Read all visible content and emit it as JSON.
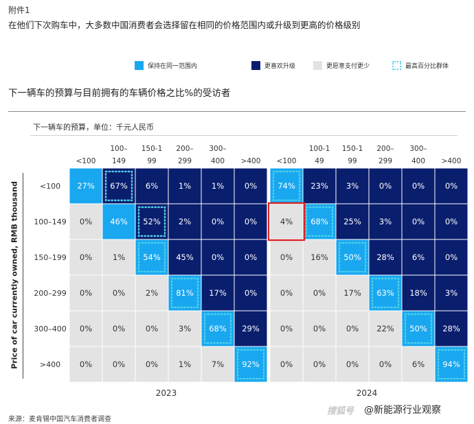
{
  "header": {
    "appendix": "附件1",
    "headline": "在他们下次购车中，大多数中国消费者会选择留在相同的价格范围内或升级到更高的价格级别"
  },
  "legend": [
    {
      "key": "same",
      "label": "保持在同一范围内",
      "color": "#19a7f0"
    },
    {
      "key": "up",
      "label": "更喜欢升级",
      "color": "#0a1e6e"
    },
    {
      "key": "down",
      "label": "更愿意支付更少",
      "color": "#e3e3e3"
    },
    {
      "key": "max",
      "label": "最高百分比群体",
      "color": "#4fd0ea"
    }
  ],
  "chart_title": "下一辆车的预算与目前拥有的车辆价格之比%的受访者",
  "source": "来源：麦肯锡中国汽车消费者调查",
  "watermark": {
    "mark": "搜狐号",
    "text": "@新能源行业观察"
  },
  "chart_data": {
    "type": "heatmap",
    "subtitle": "下一辆车的预算，单位：千元人民币",
    "ylabel": "Price of car currently owned, RMB thousand",
    "row_labels": [
      "<100",
      "100–149",
      "150–199",
      "200–299",
      "300–400",
      ">400"
    ],
    "panels": [
      {
        "year": "2023",
        "col_labels": [
          [
            "<100"
          ],
          [
            "100–",
            "149"
          ],
          [
            "150-1",
            "99"
          ],
          [
            "200–",
            "299"
          ],
          [
            "300–",
            "400"
          ],
          [
            ">400"
          ]
        ],
        "values": [
          [
            27,
            67,
            6,
            1,
            1,
            0
          ],
          [
            0,
            46,
            52,
            2,
            0,
            0
          ],
          [
            0,
            1,
            54,
            45,
            0,
            0
          ],
          [
            0,
            0,
            2,
            81,
            17,
            0
          ],
          [
            0,
            0,
            0,
            3,
            68,
            29
          ],
          [
            0,
            0,
            0,
            1,
            7,
            92
          ]
        ],
        "highest": [
          [
            0,
            1
          ],
          [
            1,
            2
          ],
          [
            2,
            2
          ],
          [
            3,
            3
          ],
          [
            4,
            4
          ],
          [
            5,
            5
          ]
        ]
      },
      {
        "year": "2024",
        "col_labels": [
          [
            "<100"
          ],
          [
            "100-1",
            "49"
          ],
          [
            "150-1",
            "99"
          ],
          [
            "200–",
            "299"
          ],
          [
            "300–",
            "400"
          ],
          [
            ">400"
          ]
        ],
        "values": [
          [
            74,
            23,
            3,
            0,
            0,
            0
          ],
          [
            4,
            68,
            25,
            3,
            0,
            0
          ],
          [
            0,
            16,
            50,
            28,
            6,
            0
          ],
          [
            0,
            0,
            17,
            63,
            18,
            3
          ],
          [
            0,
            0,
            0,
            22,
            50,
            28
          ],
          [
            0,
            0,
            0,
            0,
            6,
            94
          ]
        ],
        "highest": [
          [
            0,
            0
          ],
          [
            1,
            1
          ],
          [
            2,
            2
          ],
          [
            3,
            3
          ],
          [
            4,
            4
          ],
          [
            5,
            5
          ]
        ],
        "highlighted_cell": [
          1,
          0
        ]
      }
    ],
    "value_suffix": "%"
  }
}
